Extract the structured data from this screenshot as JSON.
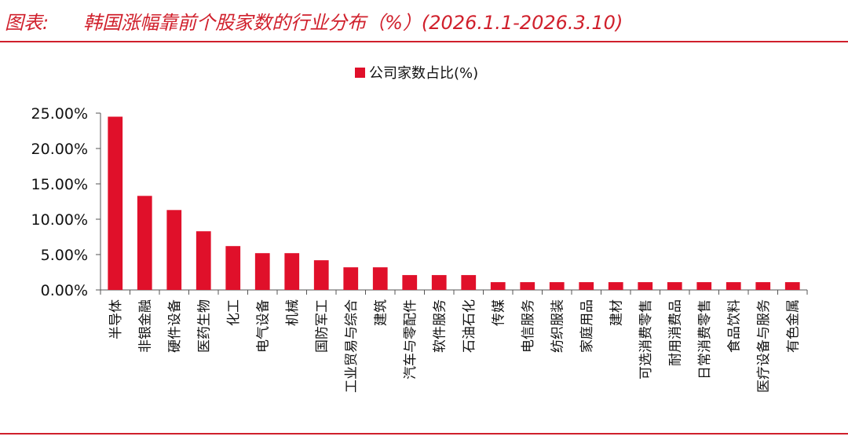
{
  "header": {
    "prefix": "图表:",
    "title": "韩国涨幅靠前个股家数的行业分布（%）(2026.1.1-2026.3.10)"
  },
  "colors": {
    "accent": "#d0202c",
    "bar": "#e0102a",
    "axis": "#555555"
  },
  "chart_data": {
    "type": "bar",
    "legend": "公司家数占比(%)",
    "legend_position": "top-center",
    "grid": false,
    "ylim": [
      0,
      25
    ],
    "yticks": [
      0,
      5,
      10,
      15,
      20,
      25
    ],
    "ytick_labels": [
      "0.00%",
      "5.00%",
      "10.00%",
      "15.00%",
      "20.00%",
      "25.00%"
    ],
    "categories": [
      "半导体",
      "非银金融",
      "硬件设备",
      "医药生物",
      "化工",
      "电气设备",
      "机械",
      "国防军工",
      "工业贸易与综合",
      "建筑",
      "汽车与零配件",
      "软件服务",
      "石油石化",
      "传媒",
      "电信服务",
      "纺织服装",
      "家庭用品",
      "建材",
      "可选消费零售",
      "耐用消费品",
      "日常消费零售",
      "食品饮料",
      "医疗设备与服务",
      "有色金属"
    ],
    "values": [
      24.5,
      13.3,
      11.3,
      8.3,
      6.2,
      5.2,
      5.2,
      4.2,
      3.2,
      3.2,
      2.1,
      2.1,
      2.1,
      1.1,
      1.1,
      1.1,
      1.1,
      1.1,
      1.1,
      1.1,
      1.1,
      1.1,
      1.1,
      1.1
    ]
  }
}
